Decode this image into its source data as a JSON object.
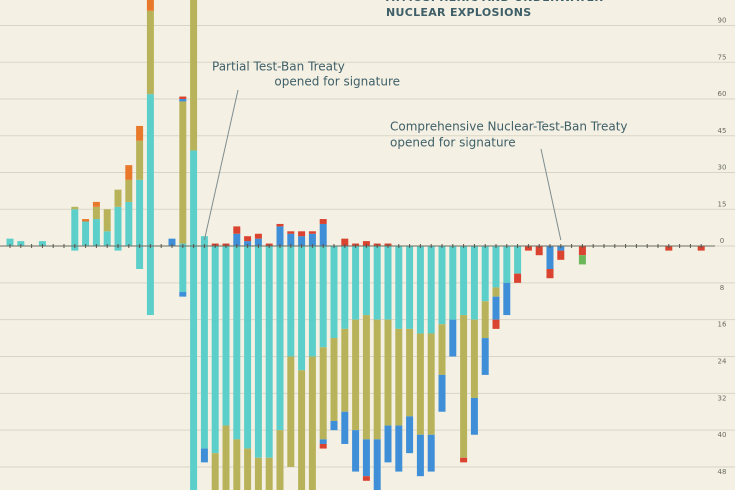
{
  "chart_data": {
    "type": "bar",
    "stacked": true,
    "title_lines": [
      "ATMOSPHERIC AND UNDERWATER",
      "NUCLEAR EXPLOSIONS"
    ],
    "annotations": [
      {
        "lines": [
          "Partial Test-Ban Treaty",
          "opened for signature"
        ],
        "index": 18
      },
      {
        "lines": [
          "Comprehensive Nuclear-Test-Ban Treaty",
          "opened for signature"
        ],
        "index": 51
      }
    ],
    "ylim": [
      0,
      100
    ],
    "yticks": [
      0,
      15,
      30,
      45,
      60,
      75,
      90
    ],
    "y2lim": [
      0,
      53
    ],
    "y2ticks": [
      8,
      16,
      24,
      32,
      40,
      48
    ],
    "grid": true,
    "series": [
      {
        "color": "#5ccfca",
        "values": [
          3,
          2,
          0,
          2,
          0,
          0,
          15,
          10,
          11,
          6,
          16,
          18,
          27,
          62,
          0,
          0,
          1,
          39,
          4,
          0,
          0,
          0,
          0,
          0,
          0,
          0,
          0,
          0,
          0,
          0,
          0,
          0,
          0,
          0,
          0,
          0,
          0,
          0,
          0,
          0,
          0,
          0,
          0,
          0,
          0,
          0,
          0,
          0,
          0,
          0,
          0,
          0,
          0,
          0,
          0,
          0,
          0,
          0,
          0,
          0,
          0,
          0,
          0,
          0,
          0
        ]
      },
      {
        "color": "#b8b35a",
        "values": [
          0,
          0,
          0,
          0,
          0,
          0,
          1,
          0,
          5,
          9,
          7,
          9,
          16,
          34,
          0,
          0,
          58,
          78,
          0,
          0,
          0,
          0,
          0,
          0,
          0,
          0,
          0,
          0,
          0,
          0,
          0,
          0,
          0,
          0,
          0,
          0,
          0,
          0,
          0,
          0,
          0,
          0,
          0,
          0,
          0,
          0,
          0,
          0,
          0,
          0,
          0,
          0,
          0,
          0,
          0,
          0,
          0,
          0,
          0,
          0,
          0,
          0,
          0,
          0,
          0
        ]
      },
      {
        "color": "#e8782a",
        "values": [
          0,
          0,
          0,
          0,
          0,
          0,
          0,
          1,
          2,
          0,
          0,
          6,
          6,
          5,
          0,
          0,
          0,
          0,
          0,
          0,
          0,
          0,
          0,
          0,
          0,
          0,
          0,
          0,
          0,
          0,
          0,
          0,
          0,
          0,
          0,
          0,
          0,
          0,
          0,
          0,
          0,
          0,
          0,
          0,
          0,
          0,
          0,
          0,
          0,
          0,
          0,
          0,
          0,
          0,
          0,
          0,
          0,
          0,
          0,
          0,
          0,
          0,
          0,
          0,
          0
        ]
      },
      {
        "color": "#3f8fd8",
        "values": [
          0,
          0,
          0,
          0,
          0,
          0,
          0,
          0,
          0,
          0,
          0,
          0,
          0,
          0,
          0,
          3,
          1,
          0,
          0,
          0,
          0,
          5,
          2,
          3,
          0,
          8,
          5,
          4,
          5,
          9,
          0,
          0,
          0,
          0,
          0,
          0,
          0,
          0,
          0,
          0,
          0,
          0,
          0,
          0,
          0,
          0,
          0,
          0,
          0,
          0,
          0,
          0,
          0,
          0,
          0,
          0,
          0,
          0,
          0,
          0,
          0,
          0,
          0,
          0,
          0
        ]
      },
      {
        "color": "#d9432f",
        "values": [
          0,
          0,
          0,
          0,
          0,
          0,
          0,
          0,
          0,
          0,
          0,
          0,
          0,
          0,
          0,
          0,
          1,
          0,
          0,
          1,
          1,
          3,
          2,
          2,
          1,
          1,
          1,
          2,
          1,
          2,
          0,
          3,
          1,
          2,
          1,
          1,
          0,
          0,
          0,
          0,
          0,
          0,
          0,
          0,
          0,
          0,
          0,
          0,
          0,
          0,
          0,
          0,
          0,
          0,
          0,
          0,
          0,
          0,
          0,
          0,
          0,
          0,
          0,
          0,
          0
        ]
      },
      {
        "color": "#5ccfca",
        "axis": "y2",
        "values": [
          0,
          0,
          0,
          0,
          0,
          0,
          1,
          0,
          0,
          0,
          1,
          0,
          5,
          15,
          0,
          0,
          10,
          53,
          44,
          45,
          39,
          42,
          44,
          46,
          46,
          40,
          24,
          27,
          24,
          22,
          20,
          18,
          16,
          15,
          16,
          16,
          18,
          18,
          19,
          19,
          17,
          16,
          15,
          16,
          12,
          9,
          8,
          6,
          0,
          0,
          0,
          0,
          0,
          0,
          0,
          0,
          0,
          0,
          0,
          0,
          0,
          0,
          0,
          0,
          0
        ]
      },
      {
        "color": "#b8b35a",
        "axis": "y2",
        "values": [
          0,
          0,
          0,
          0,
          0,
          0,
          0,
          0,
          0,
          0,
          0,
          0,
          0,
          0,
          0,
          0,
          0,
          0,
          0,
          8,
          14,
          11,
          9,
          7,
          7,
          13,
          24,
          26,
          29,
          20,
          18,
          18,
          24,
          27,
          26,
          23,
          21,
          19,
          22,
          22,
          11,
          0,
          31,
          17,
          8,
          2,
          0,
          0,
          0,
          0,
          0,
          0,
          0,
          0,
          0,
          0,
          0,
          0,
          0,
          0,
          0,
          0,
          0,
          0,
          0
        ]
      },
      {
        "color": "#3f8fd8",
        "axis": "y2",
        "values": [
          0,
          0,
          0,
          0,
          0,
          0,
          0,
          0,
          0,
          0,
          0,
          0,
          0,
          0,
          0,
          0,
          1,
          0,
          3,
          0,
          0,
          0,
          0,
          0,
          0,
          0,
          0,
          0,
          0,
          1,
          2,
          7,
          9,
          8,
          11,
          8,
          10,
          8,
          9,
          8,
          8,
          8,
          0,
          8,
          8,
          5,
          7,
          0,
          0,
          0,
          5,
          1,
          0,
          0,
          0,
          0,
          0,
          0,
          0,
          0,
          0,
          0,
          0,
          0,
          0
        ]
      },
      {
        "color": "#d9432f",
        "axis": "y2",
        "values": [
          0,
          0,
          0,
          0,
          0,
          0,
          0,
          0,
          0,
          0,
          0,
          0,
          0,
          0,
          0,
          0,
          0,
          0,
          0,
          0,
          0,
          0,
          0,
          0,
          0,
          0,
          0,
          0,
          0,
          1,
          0,
          0,
          0,
          1,
          0,
          0,
          0,
          0,
          0,
          0,
          0,
          0,
          1,
          0,
          0,
          2,
          0,
          2,
          1,
          2,
          2,
          2,
          0,
          2,
          0,
          0,
          0,
          0,
          0,
          0,
          0,
          1,
          0,
          0,
          1
        ]
      },
      {
        "color": "#6cb75a",
        "axis": "y2",
        "values": [
          0,
          0,
          0,
          0,
          0,
          0,
          0,
          0,
          0,
          0,
          0,
          0,
          0,
          0,
          0,
          0,
          0,
          0,
          0,
          0,
          0,
          0,
          0,
          0,
          0,
          0,
          0,
          0,
          0,
          0,
          0,
          0,
          0,
          0,
          0,
          0,
          0,
          0,
          0,
          0,
          0,
          0,
          0,
          0,
          0,
          0,
          0,
          0,
          0,
          0,
          0,
          0,
          0,
          2,
          0,
          0,
          0,
          0,
          0,
          0,
          0,
          0,
          0,
          0,
          0
        ]
      }
    ]
  }
}
